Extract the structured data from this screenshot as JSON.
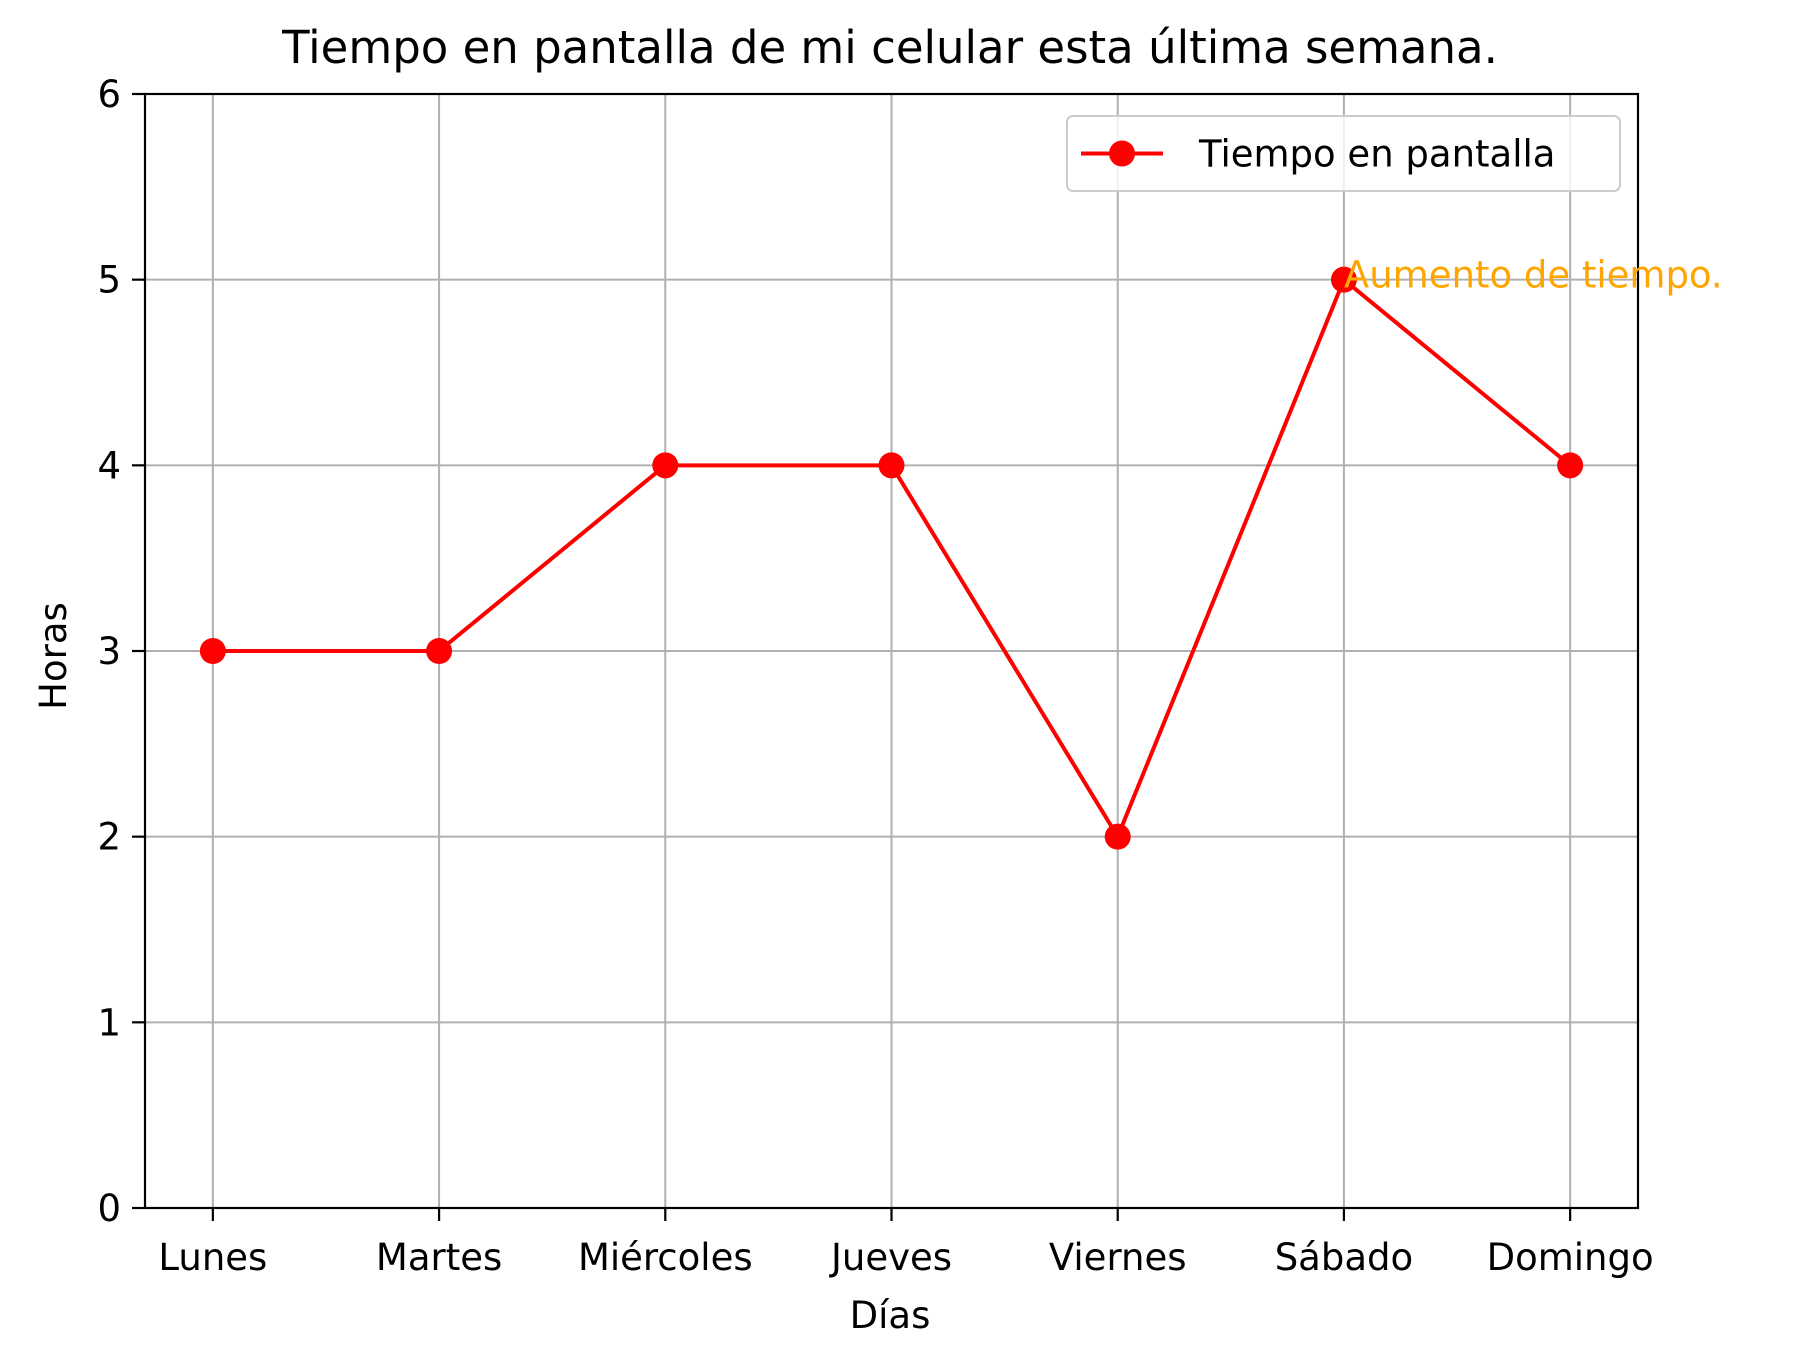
{
  "chart_data": {
    "type": "line",
    "title": "Tiempo en pantalla de mi celular esta última semana.",
    "xlabel": "Días",
    "ylabel": "Horas",
    "categories": [
      "Lunes",
      "Martes",
      "Miércoles",
      "Jueves",
      "Viernes",
      "Sábado",
      "Domingo"
    ],
    "series": [
      {
        "name": "Tiempo en pantalla",
        "values": [
          3,
          3,
          4,
          4,
          2,
          5,
          4
        ],
        "color": "#ff0000",
        "marker": "circle"
      }
    ],
    "ylim": [
      0,
      6
    ],
    "yticks": [
      0,
      1,
      2,
      3,
      4,
      5,
      6
    ],
    "grid": true,
    "legend_position": "top-right",
    "annotations": [
      {
        "text": "Aumento de tiempo.",
        "x": "Sábado",
        "y": 5,
        "color": "#ffa500"
      }
    ]
  }
}
